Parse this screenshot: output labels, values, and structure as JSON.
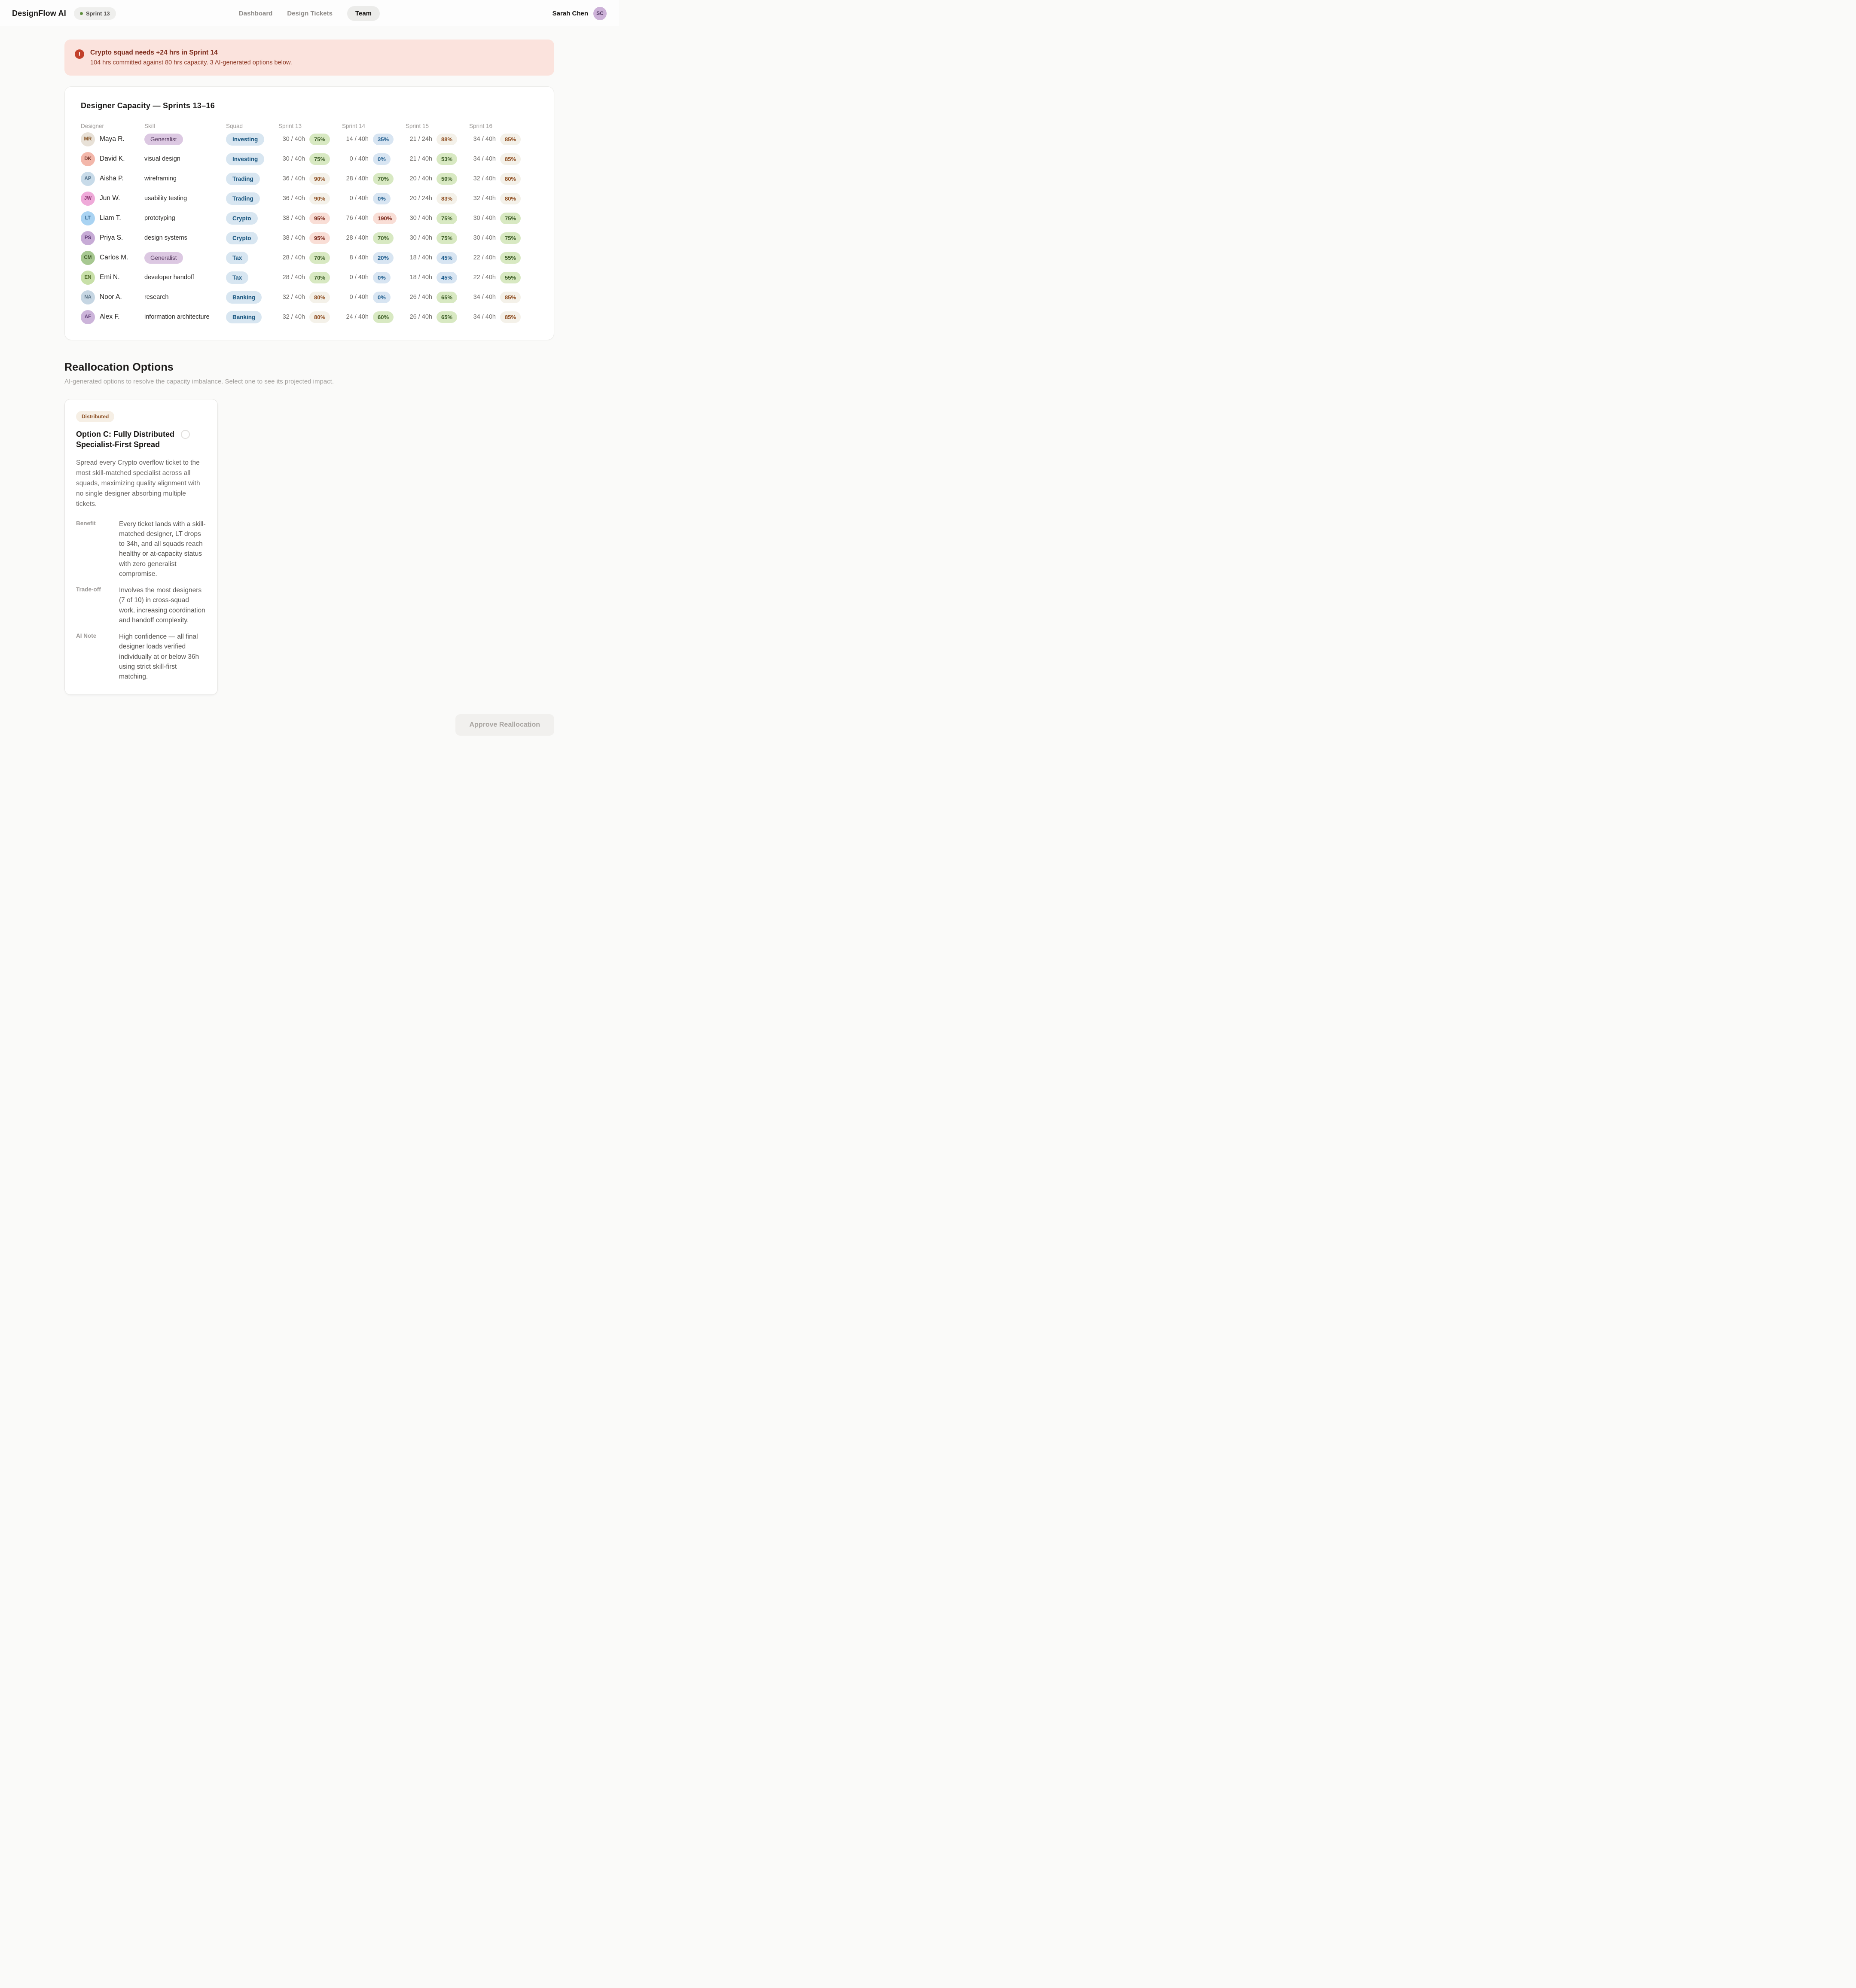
{
  "header": {
    "logo": "DesignFlow AI",
    "sprint_badge": "Sprint 13",
    "nav": [
      {
        "label": "Dashboard",
        "active": false
      },
      {
        "label": "Design Tickets",
        "active": false
      },
      {
        "label": "Team",
        "active": true
      }
    ],
    "user_name": "Sarah Chen",
    "user_initials": "SC"
  },
  "alert": {
    "title": "Crypto squad needs +24 hrs in Sprint 14",
    "description": "104 hrs committed against 80 hrs capacity. 3 AI-generated options below."
  },
  "capacity_table": {
    "title": "Designer Capacity — Sprints 13–16",
    "columns": [
      "Designer",
      "Skill",
      "Squad",
      "Sprint 13",
      "Sprint 14",
      "Sprint 15",
      "Sprint 16"
    ],
    "rows": [
      {
        "initials": "MR",
        "avatar": "tan",
        "name": "Maya R.",
        "skill": "Generalist",
        "skill_badge": true,
        "squad": "Investing",
        "sprints": [
          {
            "hours": "30 / 40h",
            "pct": "75%",
            "tone": "green"
          },
          {
            "hours": "14 / 40h",
            "pct": "35%",
            "tone": "blue"
          },
          {
            "hours": "21 / 24h",
            "pct": "88%",
            "tone": "amber"
          },
          {
            "hours": "34 / 40h",
            "pct": "85%",
            "tone": "amber"
          }
        ]
      },
      {
        "initials": "DK",
        "avatar": "salmon",
        "name": "David K.",
        "skill": "visual design",
        "skill_badge": false,
        "squad": "Investing",
        "sprints": [
          {
            "hours": "30 / 40h",
            "pct": "75%",
            "tone": "green"
          },
          {
            "hours": "0 / 40h",
            "pct": "0%",
            "tone": "blue"
          },
          {
            "hours": "21 / 40h",
            "pct": "53%",
            "tone": "green"
          },
          {
            "hours": "34 / 40h",
            "pct": "85%",
            "tone": "amber"
          }
        ]
      },
      {
        "initials": "AP",
        "avatar": "skyblue",
        "name": "Aisha P.",
        "skill": "wireframing",
        "skill_badge": false,
        "squad": "Trading",
        "sprints": [
          {
            "hours": "36 / 40h",
            "pct": "90%",
            "tone": "amber"
          },
          {
            "hours": "28 / 40h",
            "pct": "70%",
            "tone": "green"
          },
          {
            "hours": "20 / 40h",
            "pct": "50%",
            "tone": "green"
          },
          {
            "hours": "32 / 40h",
            "pct": "80%",
            "tone": "amber"
          }
        ]
      },
      {
        "initials": "JW",
        "avatar": "pink",
        "name": "Jun W.",
        "skill": "usability testing",
        "skill_badge": false,
        "squad": "Trading",
        "sprints": [
          {
            "hours": "36 / 40h",
            "pct": "90%",
            "tone": "amber"
          },
          {
            "hours": "0 / 40h",
            "pct": "0%",
            "tone": "blue"
          },
          {
            "hours": "20 / 24h",
            "pct": "83%",
            "tone": "amber"
          },
          {
            "hours": "32 / 40h",
            "pct": "80%",
            "tone": "amber"
          }
        ]
      },
      {
        "initials": "LT",
        "avatar": "blue",
        "name": "Liam T.",
        "skill": "prototyping",
        "skill_badge": false,
        "squad": "Crypto",
        "sprints": [
          {
            "hours": "38 / 40h",
            "pct": "95%",
            "tone": "red"
          },
          {
            "hours": "76 / 40h",
            "pct": "190%",
            "tone": "red"
          },
          {
            "hours": "30 / 40h",
            "pct": "75%",
            "tone": "green"
          },
          {
            "hours": "30 / 40h",
            "pct": "75%",
            "tone": "green"
          }
        ]
      },
      {
        "initials": "PS",
        "avatar": "purple",
        "name": "Priya S.",
        "skill": "design systems",
        "skill_badge": false,
        "squad": "Crypto",
        "sprints": [
          {
            "hours": "38 / 40h",
            "pct": "95%",
            "tone": "red"
          },
          {
            "hours": "28 / 40h",
            "pct": "70%",
            "tone": "green"
          },
          {
            "hours": "30 / 40h",
            "pct": "75%",
            "tone": "green"
          },
          {
            "hours": "30 / 40h",
            "pct": "75%",
            "tone": "green"
          }
        ]
      },
      {
        "initials": "CM",
        "avatar": "green",
        "name": "Carlos M.",
        "skill": "Generalist",
        "skill_badge": true,
        "squad": "Tax",
        "sprints": [
          {
            "hours": "28 / 40h",
            "pct": "70%",
            "tone": "green"
          },
          {
            "hours": "8 / 40h",
            "pct": "20%",
            "tone": "blue"
          },
          {
            "hours": "18 / 40h",
            "pct": "45%",
            "tone": "blue"
          },
          {
            "hours": "22 / 40h",
            "pct": "55%",
            "tone": "green"
          }
        ]
      },
      {
        "initials": "EN",
        "avatar": "lime",
        "name": "Emi N.",
        "skill": "developer handoff",
        "skill_badge": false,
        "squad": "Tax",
        "sprints": [
          {
            "hours": "28 / 40h",
            "pct": "70%",
            "tone": "green"
          },
          {
            "hours": "0 / 40h",
            "pct": "0%",
            "tone": "blue"
          },
          {
            "hours": "18 / 40h",
            "pct": "45%",
            "tone": "blue"
          },
          {
            "hours": "22 / 40h",
            "pct": "55%",
            "tone": "green"
          }
        ]
      },
      {
        "initials": "NA",
        "avatar": "bluegray",
        "name": "Noor A.",
        "skill": "research",
        "skill_badge": false,
        "squad": "Banking",
        "sprints": [
          {
            "hours": "32 / 40h",
            "pct": "80%",
            "tone": "amber"
          },
          {
            "hours": "0 / 40h",
            "pct": "0%",
            "tone": "blue"
          },
          {
            "hours": "26 / 40h",
            "pct": "65%",
            "tone": "green"
          },
          {
            "hours": "34 / 40h",
            "pct": "85%",
            "tone": "amber"
          }
        ]
      },
      {
        "initials": "AF",
        "avatar": "lavender",
        "name": "Alex F.",
        "skill": "information architecture",
        "skill_badge": false,
        "squad": "Banking",
        "sprints": [
          {
            "hours": "32 / 40h",
            "pct": "80%",
            "tone": "amber"
          },
          {
            "hours": "24 / 40h",
            "pct": "60%",
            "tone": "green"
          },
          {
            "hours": "26 / 40h",
            "pct": "65%",
            "tone": "green"
          },
          {
            "hours": "34 / 40h",
            "pct": "85%",
            "tone": "amber"
          }
        ]
      }
    ]
  },
  "reallocation": {
    "title": "Reallocation Options",
    "subtitle": "AI-generated options to resolve the capacity imbalance. Select one to see its projected impact.",
    "option": {
      "badge": "Distributed",
      "title": "Option C: Fully Distributed Specialist-First Spread",
      "description": "Spread every Crypto overflow ticket to the most skill-matched specialist across all squads, maximizing quality alignment with no single designer absorbing multiple tickets.",
      "details": [
        {
          "label": "Benefit",
          "text": "Every ticket lands with a skill-matched designer, LT drops to 34h, and all squads reach healthy or at-capacity status with zero generalist compromise."
        },
        {
          "label": "Trade-off",
          "text": "Involves the most designers (7 of 10) in cross-squad work, increasing coordination and handoff complexity."
        },
        {
          "label": "AI Note",
          "text": "High confidence — all final designer loads verified individually at or below 36h using strict skill-first matching."
        }
      ]
    },
    "approve_label": "Approve Reallocation"
  },
  "colors": {
    "alert_bg": "#fbe3dd",
    "alert_text": "#7e2c1c",
    "alert_icon": "#c2402a",
    "status_green_bg": "#d8e9c2",
    "status_green_text": "#3c5c26",
    "status_blue_bg": "#d8e5f2",
    "status_blue_text": "#1c5b8c",
    "status_red_bg": "#f9ded6",
    "status_red_text": "#7c2a1d",
    "status_amber_bg": "#f4f1e9",
    "status_amber_text": "#8e4d20",
    "squad_pill_bg": "#d8e6f1",
    "squad_pill_text": "#1a567f",
    "generalist_pill_bg": "#dcc8e2",
    "generalist_pill_text": "#553a5e",
    "sprint_dot": "#5f8f3e"
  }
}
